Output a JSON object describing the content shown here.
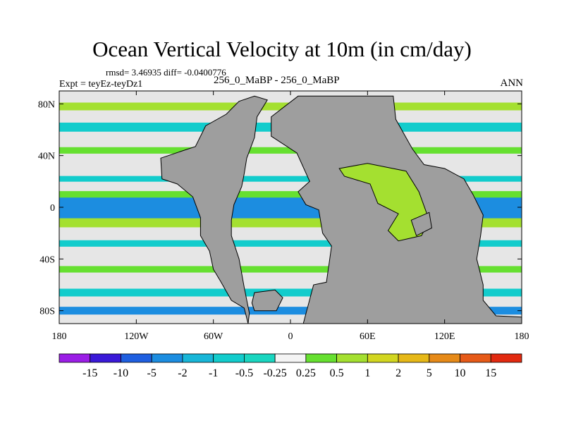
{
  "chart_data": {
    "type": "heatmap",
    "title": "Ocean Vertical Velocity at 10m (in cm/day)",
    "stats_text": "rmsd= 3.46935  diff= -0.0400776",
    "experiment_text": "Expt = teyEz-teyDz1",
    "case_text": "256_0_MaBP - 256_0_MaBP",
    "season": "ANN",
    "x_ticks": [
      {
        "lon": -180,
        "label": "180"
      },
      {
        "lon": -120,
        "label": "120W"
      },
      {
        "lon": -60,
        "label": "60W"
      },
      {
        "lon": 0,
        "label": "0"
      },
      {
        "lon": 60,
        "label": "60E"
      },
      {
        "lon": 120,
        "label": "120E"
      },
      {
        "lon": 180,
        "label": "180"
      }
    ],
    "y_ticks": [
      {
        "lat": 80,
        "label": "80N"
      },
      {
        "lat": 40,
        "label": "40N"
      },
      {
        "lat": 0,
        "label": "0"
      },
      {
        "lat": -40,
        "label": "40S"
      },
      {
        "lat": -80,
        "label": "80S"
      }
    ],
    "xlim": [
      -180,
      180
    ],
    "ylim": [
      -90,
      90
    ],
    "colorbar": {
      "labels": [
        "-15",
        "-10",
        "-5",
        "-2",
        "-1",
        "-0.5",
        "-0.25",
        "0.25",
        "0.5",
        "1",
        "2",
        "5",
        "10",
        "15"
      ],
      "colors": [
        "#9b1ee6",
        "#3a19d8",
        "#1f5fe0",
        "#1c8de0",
        "#18b6d8",
        "#12cccc",
        "#1ad6c0",
        "#f4f4f4",
        "#66e030",
        "#a4e030",
        "#d2d620",
        "#e6b818",
        "#e68a18",
        "#e65a18",
        "#e22a10"
      ]
    },
    "land_color": "#9e9e9e",
    "masked_color": "#e6e6e6",
    "land_regions": [
      {
        "name": "americas",
        "lonlat": [
          [
            -33,
            -90
          ],
          [
            -36,
            -78
          ],
          [
            -46,
            -72
          ],
          [
            -54,
            -58
          ],
          [
            -60,
            -48
          ],
          [
            -63,
            -34
          ],
          [
            -70,
            -22
          ],
          [
            -70,
            -8
          ],
          [
            -76,
            8
          ],
          [
            -88,
            18
          ],
          [
            -100,
            22
          ],
          [
            -101,
            38
          ],
          [
            -74,
            47
          ],
          [
            -66,
            63
          ],
          [
            -50,
            72
          ],
          [
            -40,
            82
          ],
          [
            -28,
            86
          ],
          [
            -18,
            83
          ],
          [
            -26,
            70
          ],
          [
            -28,
            54
          ],
          [
            -34,
            38
          ],
          [
            -36,
            26
          ],
          [
            -38,
            16
          ],
          [
            -44,
            2
          ],
          [
            -46,
            -10
          ],
          [
            -46,
            -22
          ],
          [
            -40,
            -40
          ],
          [
            -36,
            -62
          ],
          [
            -32,
            -82
          ]
        ]
      },
      {
        "name": "antarctic-island",
        "lonlat": [
          [
            -28,
            -66
          ],
          [
            -12,
            -64
          ],
          [
            -6,
            -70
          ],
          [
            -11,
            -80
          ],
          [
            -28,
            -80
          ],
          [
            -30,
            -74
          ]
        ]
      },
      {
        "name": "eurasia-africa",
        "lonlat": [
          [
            10,
            -90
          ],
          [
            18,
            -60
          ],
          [
            28,
            -58
          ],
          [
            30,
            -44
          ],
          [
            32,
            -30
          ],
          [
            25,
            -20
          ],
          [
            22,
            -2
          ],
          [
            12,
            2
          ],
          [
            6,
            12
          ],
          [
            15,
            20
          ],
          [
            5,
            42
          ],
          [
            -15,
            55
          ],
          [
            -15,
            70
          ],
          [
            6,
            86
          ],
          [
            80,
            86
          ],
          [
            82,
            68
          ],
          [
            95,
            45
          ],
          [
            104,
            33
          ],
          [
            120,
            30
          ],
          [
            135,
            22
          ],
          [
            142,
            10
          ],
          [
            150,
            -6
          ],
          [
            148,
            -22
          ],
          [
            145,
            -40
          ],
          [
            150,
            -60
          ],
          [
            150,
            -72
          ],
          [
            160,
            -84
          ],
          [
            180,
            -85
          ],
          [
            180,
            -90
          ]
        ]
      },
      {
        "name": "inner-gulf",
        "fill": "ocean",
        "lonlat": [
          [
            38,
            30
          ],
          [
            60,
            34
          ],
          [
            90,
            28
          ],
          [
            100,
            12
          ],
          [
            108,
            -10
          ],
          [
            102,
            -22
          ],
          [
            84,
            -26
          ],
          [
            76,
            -18
          ],
          [
            84,
            -5
          ],
          [
            68,
            3
          ],
          [
            62,
            18
          ],
          [
            42,
            24
          ]
        ]
      },
      {
        "name": "island-east",
        "lonlat": [
          [
            94,
            -10
          ],
          [
            108,
            -4
          ],
          [
            110,
            -16
          ],
          [
            98,
            -22
          ]
        ]
      }
    ],
    "zonal_bands": [
      {
        "lat": 0,
        "halfwidth": 3.2,
        "color": "#e22a10"
      },
      {
        "lat": 0,
        "halfwidth": 6,
        "color": "#e6b818"
      },
      {
        "lat": 0,
        "halfwidth": 9,
        "color": "#1c8de0"
      },
      {
        "lat": 10,
        "halfwidth": 2.5,
        "color": "#66e030"
      },
      {
        "lat": -12,
        "halfwidth": 3.5,
        "color": "#a4e030"
      },
      {
        "lat": 22,
        "halfwidth": 2.2,
        "color": "#12cccc"
      },
      {
        "lat": -28,
        "halfwidth": 2.5,
        "color": "#12cccc"
      },
      {
        "lat": 44,
        "halfwidth": 2.5,
        "color": "#66e030"
      },
      {
        "lat": -48,
        "halfwidth": 2.5,
        "color": "#66e030"
      },
      {
        "lat": 62,
        "halfwidth": 3.5,
        "color": "#12cccc"
      },
      {
        "lat": -66,
        "halfwidth": 3,
        "color": "#12cccc"
      },
      {
        "lat": 78,
        "halfwidth": 3,
        "color": "#a4e030"
      },
      {
        "lat": -80,
        "halfwidth": 3,
        "color": "#1c8de0"
      }
    ]
  }
}
